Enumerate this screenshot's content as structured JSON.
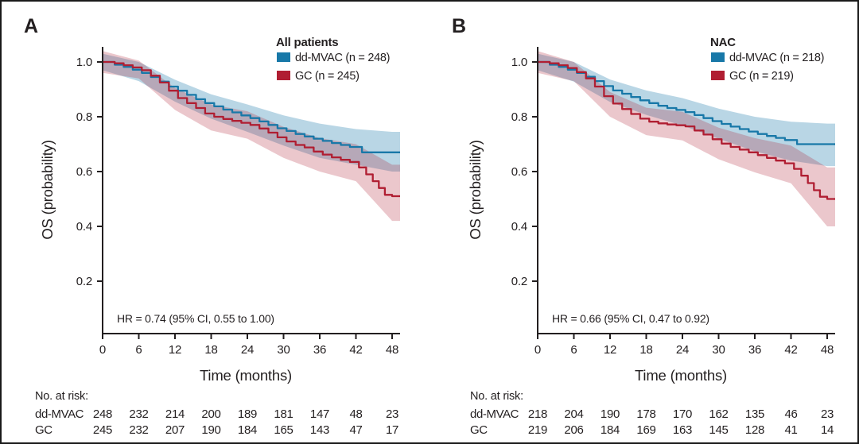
{
  "figure": {
    "background": "#ffffff",
    "border_color": "#1a1a1a",
    "text_color": "#231f20"
  },
  "chart_data": [
    {
      "type": "line",
      "subtype": "kaplan-meier-step",
      "panel_label": "A",
      "legend_title": "All patients",
      "annotation": "HR = 0.74 (95% CI, 0.55 to 1.00)",
      "xlabel": "Time (months)",
      "ylabel": "OS (probability)",
      "xlim": [
        0,
        48
      ],
      "ylim": [
        0,
        1.05
      ],
      "x_ticks": [
        0,
        6,
        12,
        18,
        24,
        30,
        36,
        42,
        48
      ],
      "y_ticks": [
        "1.0",
        "0.8",
        "0.6",
        "0.4",
        "0.2"
      ],
      "grid": false,
      "legend_position": "top-right",
      "series": [
        {
          "name": "dd-MVAC (n = 248)",
          "short_name": "dd-MVAC",
          "color": "#1878a8",
          "band_color": "rgba(24,120,168,0.30)",
          "t": [
            0,
            2,
            3.5,
            5,
            6.5,
            8,
            9.5,
            11,
            12.5,
            14,
            15.5,
            17,
            18.5,
            20,
            21.5,
            23,
            24.5,
            26,
            27.5,
            29,
            30.5,
            32,
            33.5,
            35,
            36.5,
            38,
            39.5,
            41,
            43,
            48
          ],
          "s": [
            1.0,
            0.99,
            0.982,
            0.972,
            0.96,
            0.945,
            0.928,
            0.91,
            0.895,
            0.88,
            0.864,
            0.85,
            0.838,
            0.826,
            0.816,
            0.805,
            0.795,
            0.783,
            0.77,
            0.758,
            0.748,
            0.737,
            0.728,
            0.72,
            0.712,
            0.704,
            0.697,
            0.69,
            0.67,
            0.67
          ],
          "ci_t": [
            0,
            6,
            12,
            18,
            24,
            30,
            36,
            42,
            48
          ],
          "ci_hi": [
            1.03,
            1.0,
            0.935,
            0.882,
            0.845,
            0.805,
            0.775,
            0.755,
            0.745
          ],
          "ci_lo": [
            0.97,
            0.93,
            0.855,
            0.793,
            0.745,
            0.695,
            0.65,
            0.625,
            0.6
          ]
        },
        {
          "name": "GC (n = 245)",
          "short_name": "GC",
          "color": "#b01e32",
          "band_color": "rgba(176,30,50,0.25)",
          "t": [
            0,
            2,
            3.5,
            5,
            6.5,
            8,
            9.5,
            11,
            12.5,
            14,
            15.5,
            17,
            18.5,
            20,
            21.5,
            23,
            24.5,
            26,
            27.5,
            29,
            30.5,
            32,
            33.5,
            35,
            36.5,
            38,
            39.5,
            41,
            42.5,
            43.7,
            44.8,
            45.8,
            46.8,
            48
          ],
          "s": [
            1.0,
            0.995,
            0.988,
            0.98,
            0.97,
            0.95,
            0.925,
            0.895,
            0.868,
            0.85,
            0.832,
            0.812,
            0.8,
            0.792,
            0.785,
            0.778,
            0.77,
            0.757,
            0.742,
            0.725,
            0.71,
            0.697,
            0.688,
            0.673,
            0.662,
            0.652,
            0.643,
            0.635,
            0.615,
            0.59,
            0.565,
            0.54,
            0.515,
            0.51
          ],
          "ci_t": [
            0,
            6,
            12,
            18,
            24,
            30,
            36,
            42,
            48
          ],
          "ci_hi": [
            1.04,
            1.005,
            0.905,
            0.845,
            0.82,
            0.763,
            0.722,
            0.7,
            0.625
          ],
          "ci_lo": [
            0.96,
            0.94,
            0.825,
            0.75,
            0.72,
            0.65,
            0.6,
            0.565,
            0.42
          ]
        }
      ],
      "risk_table": {
        "header": "No. at risk:",
        "times": [
          0,
          6,
          12,
          18,
          24,
          30,
          36,
          42,
          48
        ],
        "rows": [
          {
            "label": "dd-MVAC",
            "counts": [
              248,
              232,
              214,
              200,
              189,
              181,
              147,
              48,
              23
            ]
          },
          {
            "label": "GC",
            "counts": [
              245,
              232,
              207,
              190,
              184,
              165,
              143,
              47,
              17
            ]
          }
        ]
      }
    },
    {
      "type": "line",
      "subtype": "kaplan-meier-step",
      "panel_label": "B",
      "legend_title": "NAC",
      "annotation": "HR = 0.66 (95% CI, 0.47 to 0.92)",
      "xlabel": "Time (months)",
      "ylabel": "OS (probability)",
      "xlim": [
        0,
        48
      ],
      "ylim": [
        0,
        1.05
      ],
      "x_ticks": [
        0,
        6,
        12,
        18,
        24,
        30,
        36,
        42,
        48
      ],
      "y_ticks": [
        "1.0",
        "0.8",
        "0.6",
        "0.4",
        "0.2"
      ],
      "grid": false,
      "legend_position": "top-right",
      "series": [
        {
          "name": "dd-MVAC (n = 218)",
          "short_name": "dd-MVAC",
          "color": "#1878a8",
          "band_color": "rgba(24,120,168,0.30)",
          "t": [
            0,
            2,
            3.5,
            5,
            6.5,
            8,
            9.5,
            11,
            12.5,
            14,
            15.5,
            17,
            18.5,
            20,
            21.5,
            23,
            24.5,
            26,
            27.5,
            29,
            30.5,
            32,
            33.5,
            35,
            36.5,
            38,
            39.5,
            41,
            43,
            48
          ],
          "s": [
            1.0,
            0.99,
            0.982,
            0.972,
            0.96,
            0.946,
            0.93,
            0.912,
            0.896,
            0.884,
            0.872,
            0.86,
            0.85,
            0.84,
            0.832,
            0.825,
            0.817,
            0.806,
            0.795,
            0.784,
            0.774,
            0.764,
            0.755,
            0.746,
            0.737,
            0.73,
            0.723,
            0.715,
            0.7,
            0.7
          ],
          "ci_t": [
            0,
            6,
            12,
            18,
            24,
            30,
            36,
            42,
            48
          ],
          "ci_hi": [
            1.03,
            1.0,
            0.936,
            0.896,
            0.868,
            0.83,
            0.8,
            0.782,
            0.775
          ],
          "ci_lo": [
            0.97,
            0.928,
            0.854,
            0.807,
            0.768,
            0.72,
            0.674,
            0.64,
            0.62
          ]
        },
        {
          "name": "GC (n = 219)",
          "short_name": "GC",
          "color": "#b01e32",
          "band_color": "rgba(176,30,50,0.25)",
          "t": [
            0,
            2,
            3.5,
            5,
            6.5,
            8,
            9.5,
            11,
            12.5,
            14,
            15.5,
            17,
            18.5,
            20,
            21.5,
            23,
            24.5,
            26,
            27.5,
            29,
            30.5,
            32,
            33.5,
            35,
            36.5,
            38,
            39.5,
            41,
            42.5,
            43.7,
            44.8,
            45.8,
            46.8,
            48
          ],
          "s": [
            1.0,
            0.995,
            0.988,
            0.978,
            0.963,
            0.94,
            0.91,
            0.875,
            0.848,
            0.828,
            0.81,
            0.793,
            0.782,
            0.776,
            0.772,
            0.769,
            0.765,
            0.75,
            0.735,
            0.718,
            0.702,
            0.69,
            0.68,
            0.67,
            0.66,
            0.65,
            0.64,
            0.63,
            0.61,
            0.585,
            0.558,
            0.532,
            0.508,
            0.5
          ],
          "ci_t": [
            0,
            6,
            12,
            18,
            24,
            30,
            36,
            42,
            48
          ],
          "ci_hi": [
            1.04,
            1.0,
            0.89,
            0.833,
            0.818,
            0.76,
            0.722,
            0.695,
            0.615
          ],
          "ci_lo": [
            0.96,
            0.93,
            0.8,
            0.733,
            0.714,
            0.645,
            0.597,
            0.557,
            0.4
          ]
        }
      ],
      "risk_table": {
        "header": "No. at risk:",
        "times": [
          0,
          6,
          12,
          18,
          24,
          30,
          36,
          42,
          48
        ],
        "rows": [
          {
            "label": "dd-MVAC",
            "counts": [
              218,
              204,
              190,
              178,
              170,
              162,
              135,
              46,
              23
            ]
          },
          {
            "label": "GC",
            "counts": [
              219,
              206,
              184,
              169,
              163,
              145,
              128,
              41,
              14
            ]
          }
        ]
      }
    }
  ]
}
